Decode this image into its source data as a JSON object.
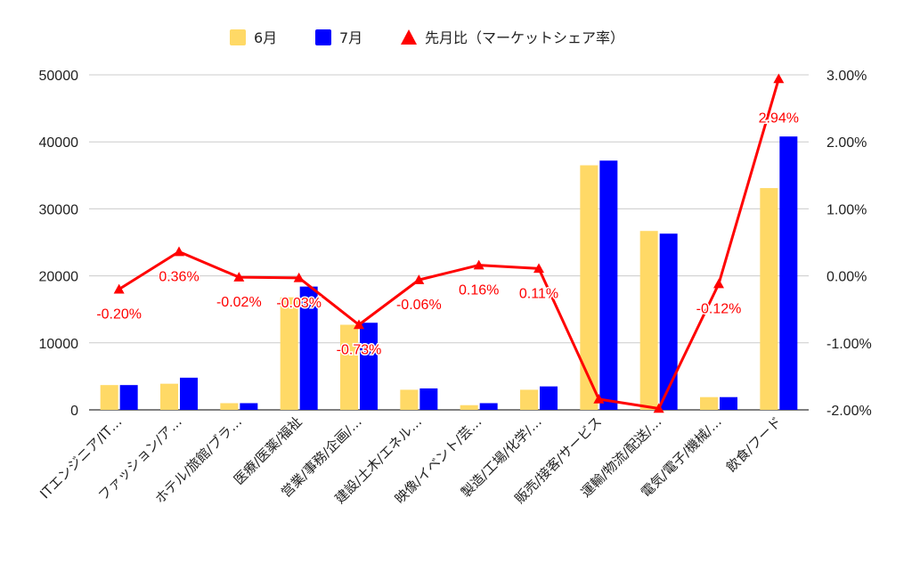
{
  "chart_data": {
    "type": "bar",
    "combo": "bar + line (secondary axis)",
    "categories": [
      "ITエンジニア/IT…",
      "ファッション/ア…",
      "ホテル/旅館/ブラ…",
      "医療/医薬/福祉",
      "営業/事務/企画/…",
      "建設/土木/エネル…",
      "映像/イベント/芸…",
      "製造/工場/化学/…",
      "販売/接客/サービス",
      "運輸/物流/配送/…",
      "電気/電子/機械/…",
      "飲食/フード"
    ],
    "series": [
      {
        "name": "6月",
        "kind": "bar",
        "axis": "left",
        "color": "#FFD966",
        "values": [
          3700,
          3900,
          1000,
          16800,
          12700,
          3000,
          700,
          3000,
          36500,
          26700,
          1900,
          33100
        ]
      },
      {
        "name": "7月",
        "kind": "bar",
        "axis": "left",
        "color": "#0000FF",
        "values": [
          3700,
          4800,
          1000,
          18400,
          13000,
          3200,
          1000,
          3500,
          37200,
          26300,
          1900,
          40800
        ]
      },
      {
        "name": "先月比（マーケットシェア率）",
        "kind": "line",
        "axis": "right",
        "color": "#FF0000",
        "marker": "triangle",
        "values": [
          -0.2,
          0.36,
          -0.02,
          -0.03,
          -0.73,
          -0.06,
          0.16,
          0.11,
          -1.84,
          -1.98,
          -0.12,
          2.94
        ],
        "labels": [
          "-0.20%",
          "0.36%",
          "-0.02%",
          "-0.03%",
          "-0.73%",
          "-0.06%",
          "0.16%",
          "0.11%",
          "",
          "",
          "-0.12%",
          "2.94%"
        ]
      }
    ],
    "y_left": {
      "min": 0,
      "max": 50000,
      "ticks": [
        "0",
        "10000",
        "20000",
        "30000",
        "40000",
        "50000"
      ]
    },
    "y_right": {
      "min": -2,
      "max": 3,
      "ticks": [
        "-2.00%",
        "-1.00%",
        "0.00%",
        "1.00%",
        "2.00%",
        "3.00%"
      ]
    },
    "grid": true,
    "legend_position": "top"
  }
}
